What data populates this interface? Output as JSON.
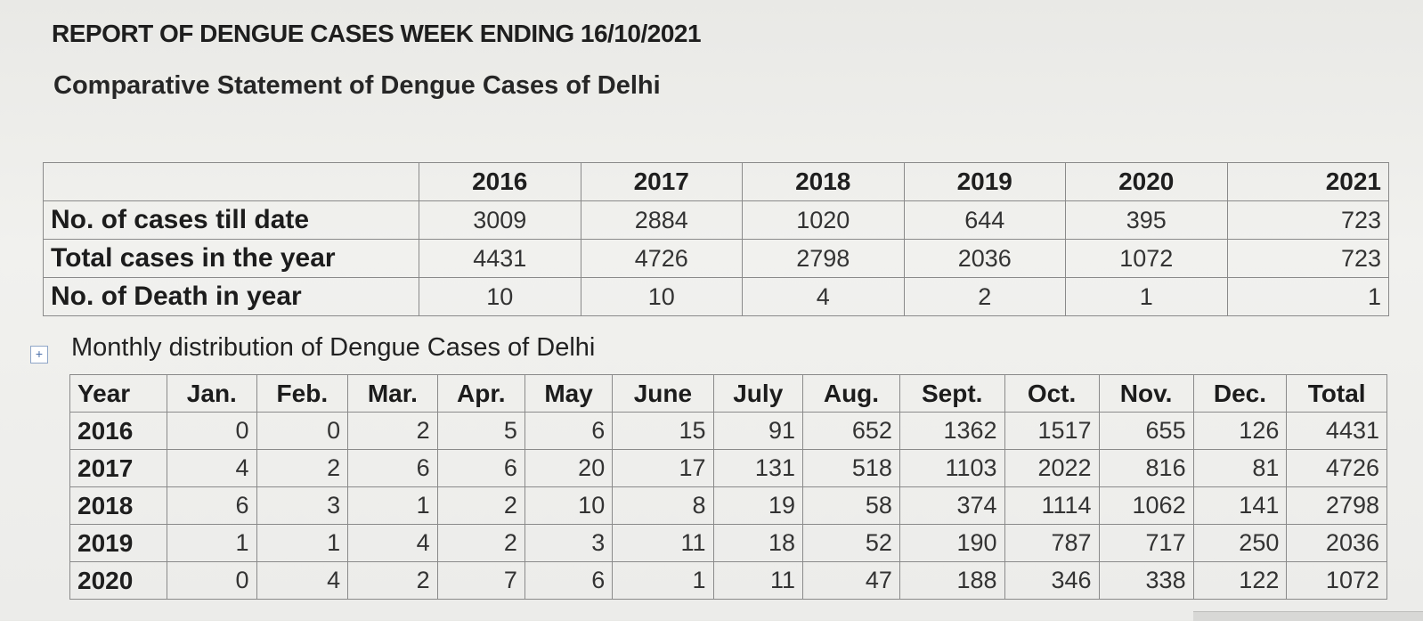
{
  "report": {
    "title": "REPORT OF DENGUE CASES WEEK ENDING 16/10/2021",
    "subtitle": "Comparative Statement of Dengue Cases of Delhi"
  },
  "summary": {
    "years": [
      "2016",
      "2017",
      "2018",
      "2019",
      "2020",
      "2021"
    ],
    "rows": [
      {
        "label": "No. of cases till date",
        "values": [
          "3009",
          "2884",
          "1020",
          "644",
          "395",
          "723"
        ]
      },
      {
        "label": "Total cases in the year",
        "values": [
          "4431",
          "4726",
          "2798",
          "2036",
          "1072",
          "723"
        ]
      },
      {
        "label": "No. of Death in year",
        "values": [
          "10",
          "10",
          "4",
          "2",
          "1",
          "1"
        ]
      }
    ]
  },
  "monthly": {
    "caption": "Monthly distribution of Dengue Cases of Delhi",
    "headers": [
      "Year",
      "Jan.",
      "Feb.",
      "Mar.",
      "Apr.",
      "May",
      "June",
      "July",
      "Aug.",
      "Sept.",
      "Oct.",
      "Nov.",
      "Dec.",
      "Total"
    ],
    "rows": [
      {
        "year": "2016",
        "values": [
          "0",
          "0",
          "2",
          "5",
          "6",
          "15",
          "91",
          "652",
          "1362",
          "1517",
          "655",
          "126",
          "4431"
        ]
      },
      {
        "year": "2017",
        "values": [
          "4",
          "2",
          "6",
          "6",
          "20",
          "17",
          "131",
          "518",
          "1103",
          "2022",
          "816",
          "81",
          "4726"
        ]
      },
      {
        "year": "2018",
        "values": [
          "6",
          "3",
          "1",
          "2",
          "10",
          "8",
          "19",
          "58",
          "374",
          "1114",
          "1062",
          "141",
          "2798"
        ]
      },
      {
        "year": "2019",
        "values": [
          "1",
          "1",
          "4",
          "2",
          "3",
          "11",
          "18",
          "52",
          "190",
          "787",
          "717",
          "250",
          "2036"
        ]
      },
      {
        "year": "2020",
        "values": [
          "0",
          "4",
          "2",
          "7",
          "6",
          "1",
          "11",
          "47",
          "188",
          "346",
          "338",
          "122",
          "1072"
        ]
      }
    ]
  },
  "icons": {
    "table_handle": "move-handle-icon"
  }
}
